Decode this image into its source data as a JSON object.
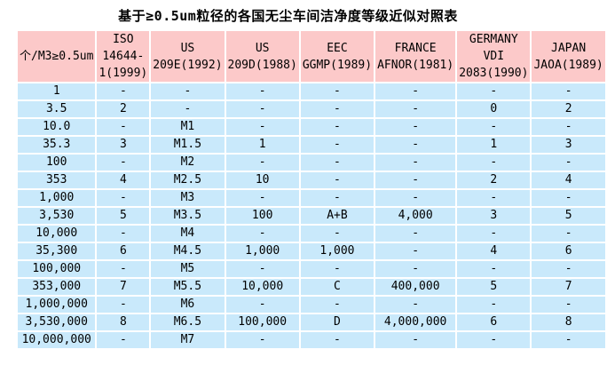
{
  "title": "基于≥0.5um粒径的各国无尘车间洁净度等级近似对照表",
  "colors": {
    "header_bg": "#FCC9C9",
    "row_bg": "#C9E9FB",
    "grid": "#FFFFFF",
    "text": "#000000"
  },
  "table": {
    "columns": [
      {
        "label": "个/M3≥0.5um"
      },
      {
        "label": "ISO\n14644-\n1(1999)"
      },
      {
        "label": "US\n209E(1992)"
      },
      {
        "label": "US\n209D(1988)"
      },
      {
        "label": "EEC\nGGMP(1989)"
      },
      {
        "label": "FRANCE\nAFNOR(1981)"
      },
      {
        "label": "GERMANY\nVDI\n2083(1990)"
      },
      {
        "label": "JAPAN\nJAOA(1989)"
      }
    ],
    "rows": [
      [
        "1",
        "-",
        "-",
        "-",
        "-",
        "-",
        "-",
        "-"
      ],
      [
        "3.5",
        "2",
        "-",
        "-",
        "-",
        "-",
        "0",
        "2"
      ],
      [
        "10.0",
        "-",
        "M1",
        "-",
        "-",
        "-",
        "-",
        "-"
      ],
      [
        "35.3",
        "3",
        "M1.5",
        "1",
        "-",
        "-",
        "1",
        "3"
      ],
      [
        "100",
        "-",
        "M2",
        "-",
        "-",
        "-",
        "-",
        "-"
      ],
      [
        "353",
        "4",
        "M2.5",
        "10",
        "-",
        "-",
        "2",
        "4"
      ],
      [
        "1,000",
        "-",
        "M3",
        "-",
        "-",
        "-",
        "-",
        "-"
      ],
      [
        "3,530",
        "5",
        "M3.5",
        "100",
        "A+B",
        "4,000",
        "3",
        "5"
      ],
      [
        "10,000",
        "-",
        "M4",
        "-",
        "-",
        "-",
        "-",
        "-"
      ],
      [
        "35,300",
        "6",
        "M4.5",
        "1,000",
        "1,000",
        "-",
        "4",
        "6"
      ],
      [
        "100,000",
        "-",
        "M5",
        "-",
        "-",
        "-",
        "-",
        "-"
      ],
      [
        "353,000",
        "7",
        "M5.5",
        "10,000",
        "C",
        "400,000",
        "5",
        "7"
      ],
      [
        "1,000,000",
        "-",
        "M6",
        "-",
        "-",
        "-",
        "-",
        "-"
      ],
      [
        "3,530,000",
        "8",
        "M6.5",
        "100,000",
        "D",
        "4,000,000",
        "6",
        "8"
      ],
      [
        "10,000,000",
        "-",
        "M7",
        "-",
        "-",
        "-",
        "-",
        "-"
      ]
    ]
  },
  "chart_data": {
    "type": "table",
    "title": "基于≥0.5um粒径的各国无尘车间洁净度等级近似对照表",
    "columns": [
      "个/M3≥0.5um",
      "ISO 14644-1(1999)",
      "US 209E(1992)",
      "US 209D(1988)",
      "EEC GGMP(1989)",
      "FRANCE AFNOR(1981)",
      "GERMANY VDI 2083(1990)",
      "JAPAN JAOA(1989)"
    ],
    "rows": [
      [
        "1",
        "-",
        "-",
        "-",
        "-",
        "-",
        "-",
        "-"
      ],
      [
        "3.5",
        "2",
        "-",
        "-",
        "-",
        "-",
        "0",
        "2"
      ],
      [
        "10.0",
        "-",
        "M1",
        "-",
        "-",
        "-",
        "-",
        "-"
      ],
      [
        "35.3",
        "3",
        "M1.5",
        "1",
        "-",
        "-",
        "1",
        "3"
      ],
      [
        "100",
        "-",
        "M2",
        "-",
        "-",
        "-",
        "-",
        "-"
      ],
      [
        "353",
        "4",
        "M2.5",
        "10",
        "-",
        "-",
        "2",
        "4"
      ],
      [
        "1,000",
        "-",
        "M3",
        "-",
        "-",
        "-",
        "-",
        "-"
      ],
      [
        "3,530",
        "5",
        "M3.5",
        "100",
        "A+B",
        "4,000",
        "3",
        "5"
      ],
      [
        "10,000",
        "-",
        "M4",
        "-",
        "-",
        "-",
        "-",
        "-"
      ],
      [
        "35,300",
        "6",
        "M4.5",
        "1,000",
        "1,000",
        "-",
        "4",
        "6"
      ],
      [
        "100,000",
        "-",
        "M5",
        "-",
        "-",
        "-",
        "-",
        "-"
      ],
      [
        "353,000",
        "7",
        "M5.5",
        "10,000",
        "C",
        "400,000",
        "5",
        "7"
      ],
      [
        "1,000,000",
        "-",
        "M6",
        "-",
        "-",
        "-",
        "-",
        "-"
      ],
      [
        "3,530,000",
        "8",
        "M6.5",
        "100,000",
        "D",
        "4,000,000",
        "6",
        "8"
      ],
      [
        "10,000,000",
        "-",
        "M7",
        "-",
        "-",
        "-",
        "-",
        "-"
      ]
    ]
  }
}
